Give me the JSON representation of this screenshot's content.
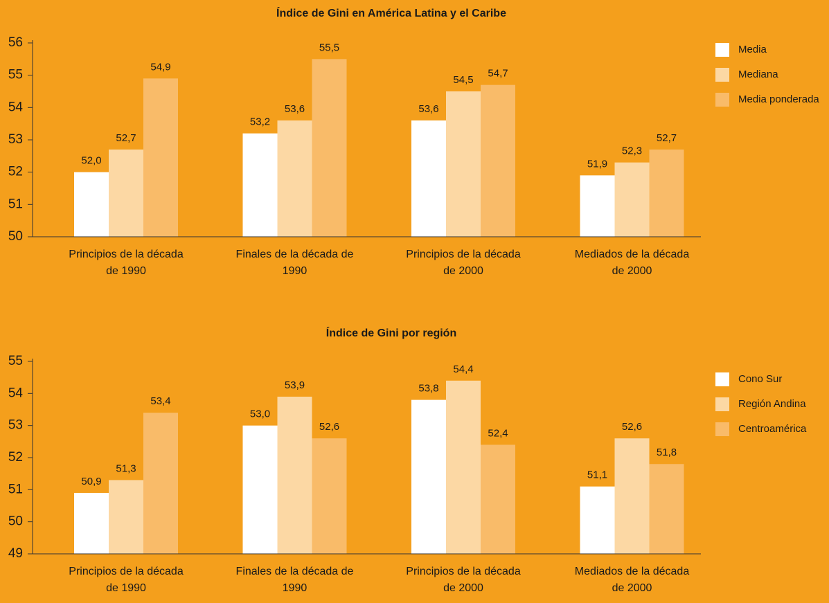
{
  "chart_data": [
    {
      "type": "bar",
      "title": "Índice de Gini en América Latina y el Caribe",
      "categories": [
        "Principios de la década de 1990",
        "Finales de la década de 1990",
        "Principios de la década de 2000",
        "Mediados de la década de 2000"
      ],
      "series": [
        {
          "name": "Media",
          "color": "#ffffff",
          "values": [
            52.0,
            53.2,
            53.6,
            51.9
          ],
          "value_labels": [
            "52,0",
            "53,2",
            "53,6",
            "51,9"
          ]
        },
        {
          "name": "Mediana",
          "color": "#fcd8a4",
          "values": [
            52.7,
            53.6,
            54.5,
            52.3
          ],
          "value_labels": [
            "52,7",
            "53,6",
            "54,5",
            "52,3"
          ]
        },
        {
          "name": "Media ponderada",
          "color": "#f9bb69",
          "values": [
            54.9,
            55.5,
            54.7,
            52.7
          ],
          "value_labels": [
            "54,9",
            "55,5",
            "54,7",
            "52,7"
          ]
        }
      ],
      "ylim": [
        50,
        56
      ],
      "yticks": [
        50,
        51,
        52,
        53,
        54,
        55,
        56
      ],
      "legend": "right"
    },
    {
      "type": "bar",
      "title": "Índice de Gini por región",
      "categories": [
        "Principios de la década de 1990",
        "Finales de la década de 1990",
        "Principios de la década de 2000",
        "Mediados de la década de 2000"
      ],
      "series": [
        {
          "name": "Cono Sur",
          "color": "#ffffff",
          "values": [
            50.9,
            53.0,
            53.8,
            51.1
          ],
          "value_labels": [
            "50,9",
            "53,0",
            "53,8",
            "51,1"
          ]
        },
        {
          "name": "Región Andina",
          "color": "#fcd8a4",
          "values": [
            51.3,
            53.9,
            54.4,
            52.6
          ],
          "value_labels": [
            "51,3",
            "53,9",
            "54,4",
            "52,6"
          ]
        },
        {
          "name": "Centroamérica",
          "color": "#f9bb69",
          "values": [
            53.4,
            52.6,
            52.4,
            51.8
          ],
          "value_labels": [
            "53,4",
            "52,6",
            "52,4",
            "51,8"
          ]
        }
      ],
      "ylim": [
        49,
        55
      ],
      "yticks": [
        49,
        50,
        51,
        52,
        53,
        54,
        55
      ],
      "legend": "right"
    }
  ]
}
